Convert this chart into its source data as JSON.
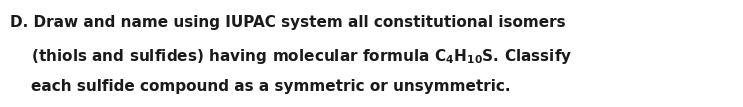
{
  "background_color": "#ffffff",
  "text_color": "#1a1a1a",
  "line1": "D. Draw and name using IUPAC system all constitutional isomers",
  "line2_pre": "    (thiols and sulfides) having molecular formula C",
  "line2_sub1": "4",
  "line2_mid": "H",
  "line2_sub2": "10",
  "line2_post": "S. Classify",
  "line3": "    each sulfide compound as a symmetric or unsymmetric.",
  "font_size": 11.0,
  "font_weight": "bold",
  "font_family": "DejaVu Sans"
}
